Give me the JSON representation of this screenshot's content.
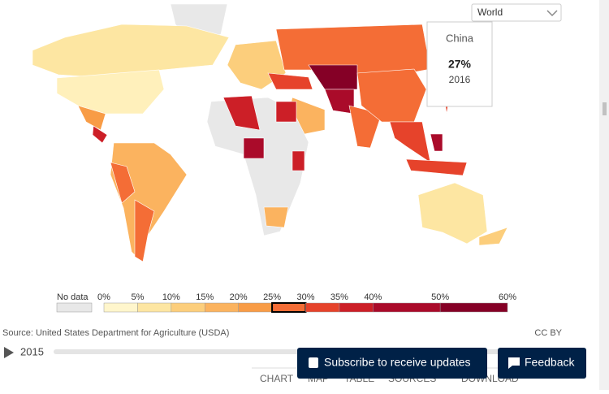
{
  "region_selector": "World",
  "tooltip": {
    "country": "China",
    "value": "27%",
    "year": "2016"
  },
  "legend": {
    "no_data": "No data",
    "no_data_color": "#e8e8e8",
    "ticks": [
      {
        "value": 0,
        "label": "0%"
      },
      {
        "value": 5,
        "label": "5%"
      },
      {
        "value": 10,
        "label": "10%"
      },
      {
        "value": 15,
        "label": "15%"
      },
      {
        "value": 20,
        "label": "20%"
      },
      {
        "value": 25,
        "label": "25%"
      },
      {
        "value": 30,
        "label": "30%"
      },
      {
        "value": 35,
        "label": "35%"
      },
      {
        "value": 40,
        "label": "40%"
      },
      {
        "value": 50,
        "label": "50%"
      },
      {
        "value": 60,
        "label": "60%"
      }
    ],
    "colors": [
      "#fff6cc",
      "#fde6a2",
      "#fcce7c",
      "#fbb35f",
      "#f89c46",
      "#f46d36",
      "#e6432b",
      "#cc1f27",
      "#aa0b2a",
      "#850026"
    ],
    "highlight": 25
  },
  "source": "Source: United States Department for Agriculture (USDA)",
  "license": "CC BY",
  "timeline_year": "2015",
  "tabs": [
    "CHART",
    "MAP",
    "TABLE",
    "SOURCES",
    "DOWNLOAD"
  ],
  "buttons": {
    "subscribe": "Subscribe to receive updates",
    "feedback": "Feedback"
  }
}
